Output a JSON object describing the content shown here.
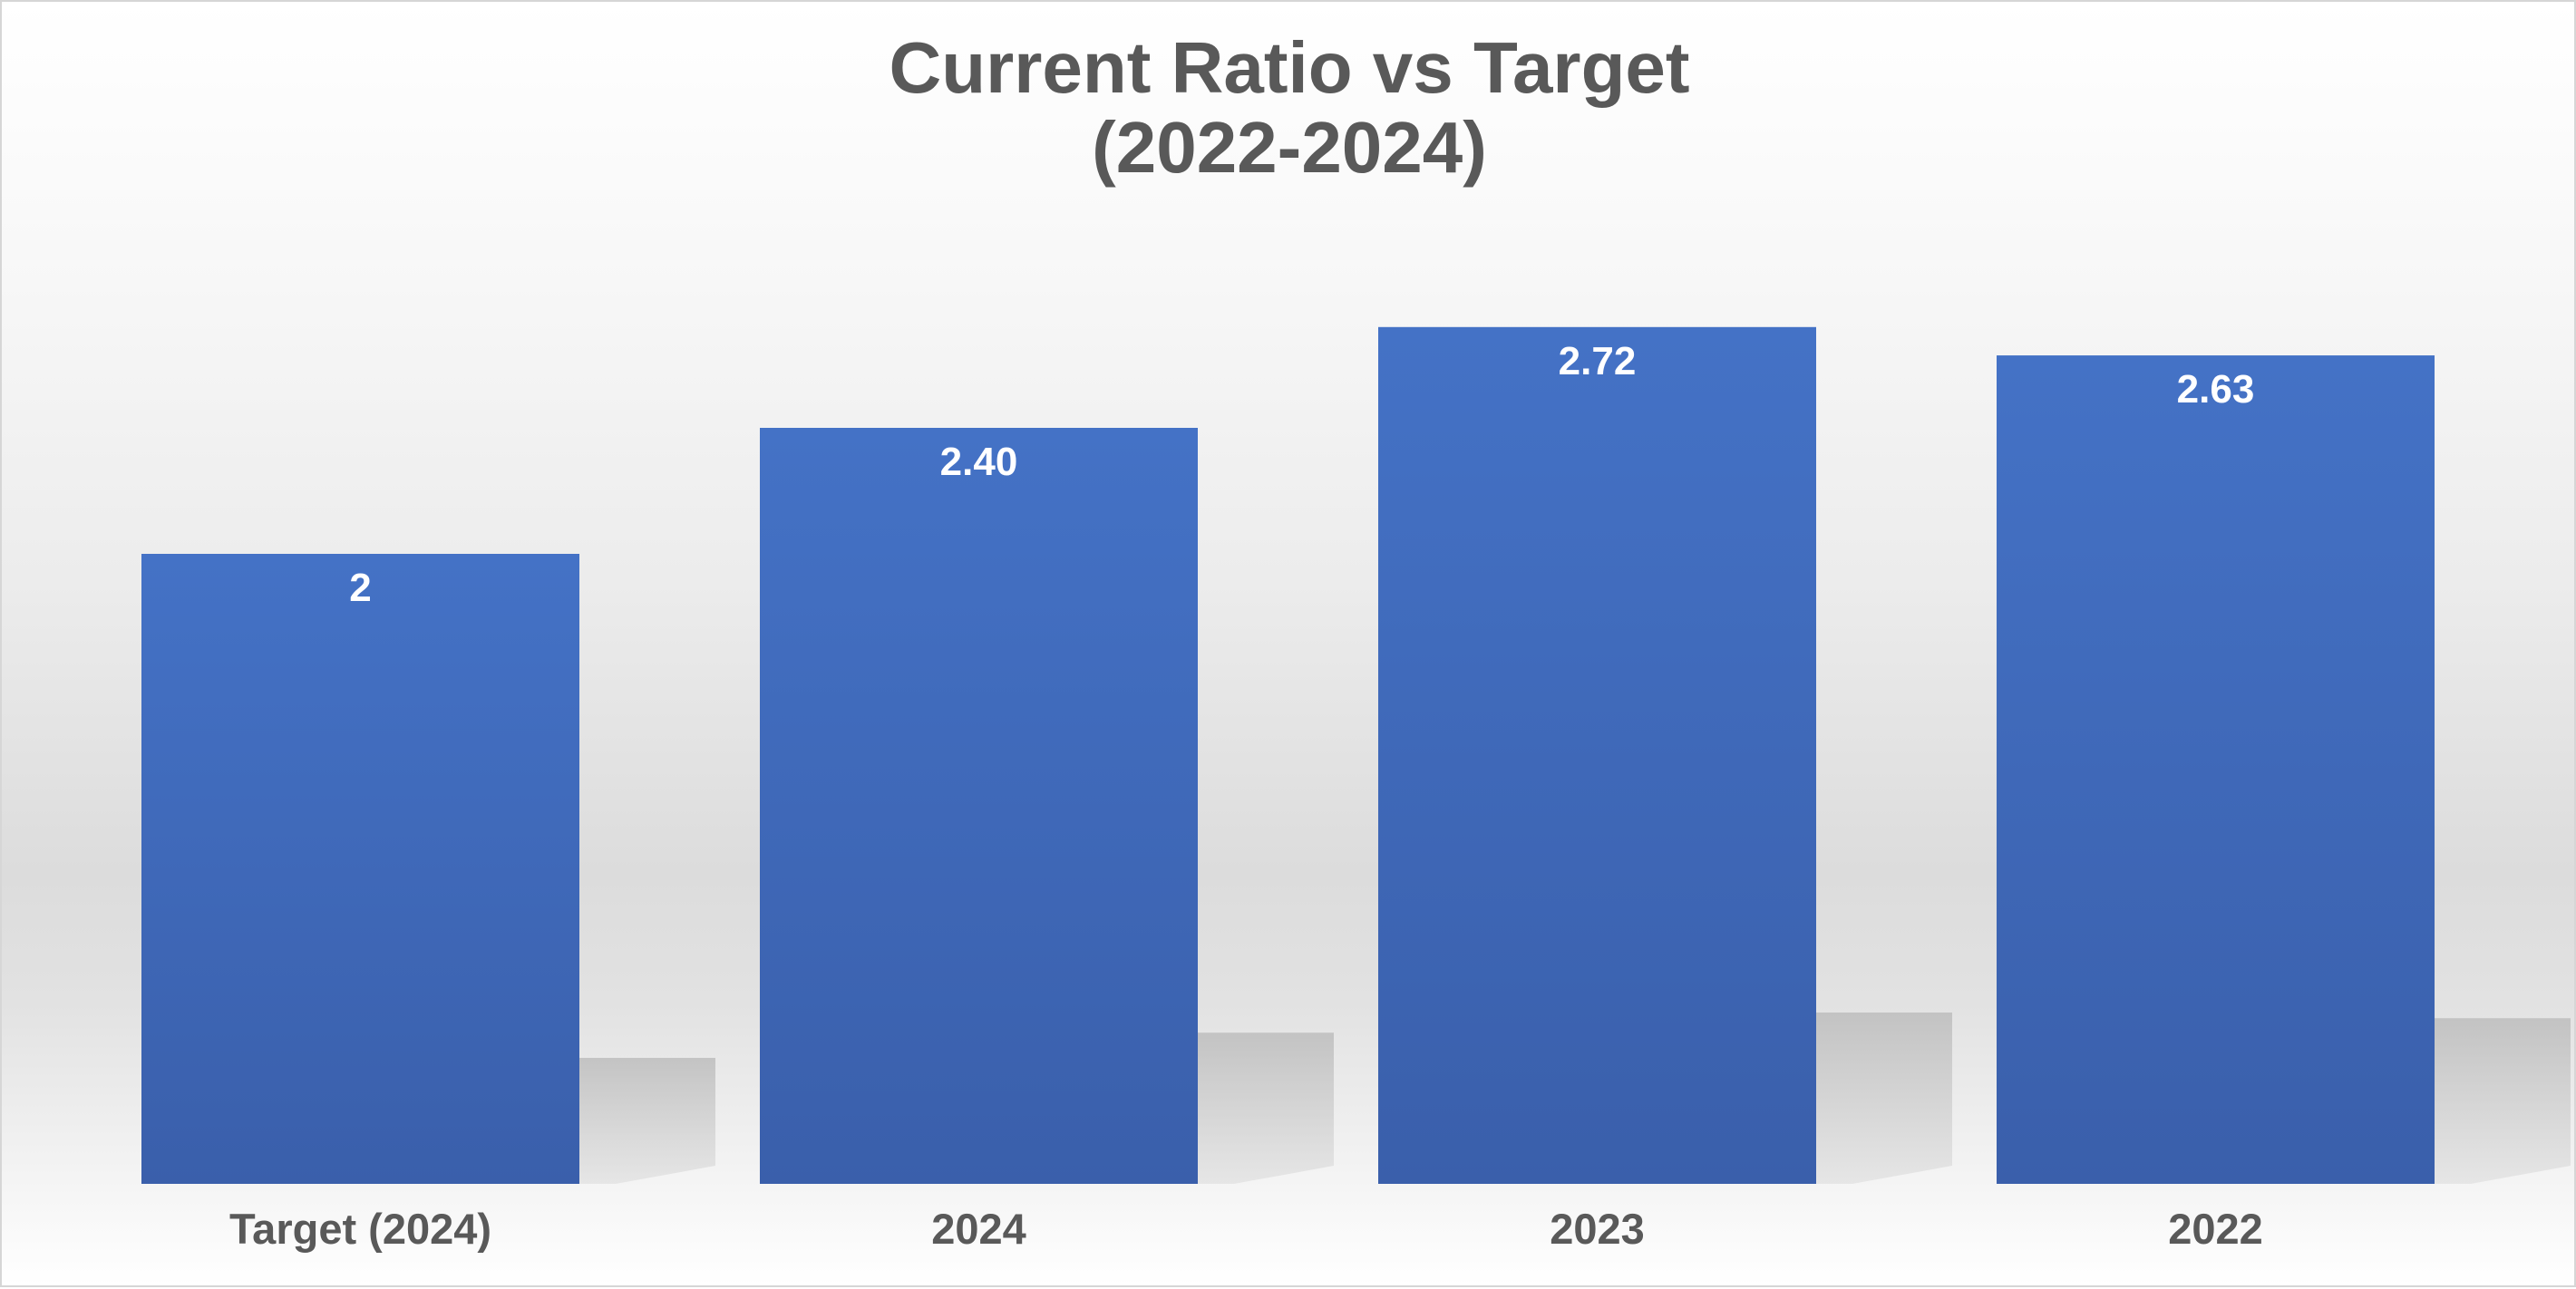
{
  "chart_data": {
    "type": "bar",
    "title": "Current Ratio vs Target",
    "subtitle": "(2022-2024)",
    "xlabel": "",
    "ylabel": "",
    "categories": [
      "Target (2024)",
      "2024",
      "2023",
      "2022"
    ],
    "values": [
      2,
      2.4,
      2.72,
      2.63
    ],
    "data_labels": [
      "2",
      "2.40",
      "2.72",
      "2.63"
    ],
    "ylim": [
      0,
      3.5
    ],
    "grid": false,
    "legend": "none",
    "bar_color": "#4472c4"
  }
}
